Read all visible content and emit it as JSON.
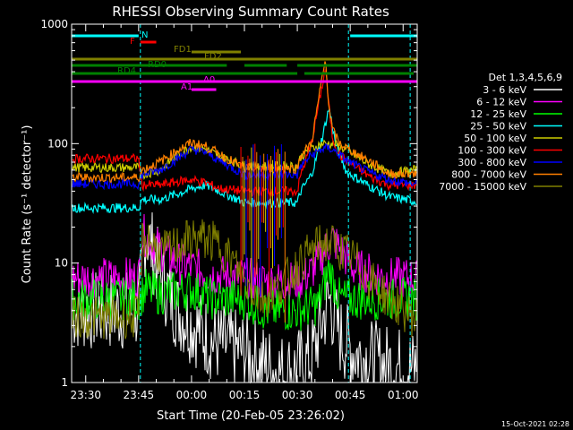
{
  "chart_data": {
    "type": "line",
    "title": "RHESSI Observing Summary Count Rates",
    "xlabel": "Start Time (20-Feb-05 23:26:02)",
    "ylabel": "Count Rate (s⁻¹ detector⁻¹)",
    "yscale": "log",
    "ylim": [
      1,
      1000
    ],
    "xlim_minutes_after_23_26_02": [
      0,
      98
    ],
    "x_ticks": [
      "23:30",
      "23:45",
      "00:00",
      "00:15",
      "00:30",
      "00:45",
      "01:00"
    ],
    "x_tick_minutes": [
      4,
      19,
      34,
      49,
      64,
      79,
      94
    ],
    "y_ticks": [
      "1",
      "10",
      "100",
      "1000"
    ],
    "y_tick_values": [
      1,
      10,
      100,
      1000
    ],
    "legend_title": "Det 1,3,4,5,6,9",
    "legend_position": "right",
    "timestamp": "15-Oct-2021 02:28",
    "series": [
      {
        "name": "3 - 6 keV",
        "color": "#ffffff",
        "x": [
          0,
          19,
          21,
          25,
          30,
          40,
          49,
          55,
          60,
          64,
          68,
          70,
          73,
          76,
          80,
          86,
          90,
          97
        ],
        "y": [
          4,
          4,
          19,
          8,
          4,
          2.2,
          1.8,
          1.4,
          1.2,
          1.3,
          1.6,
          2.5,
          5,
          2.5,
          1.8,
          1.5,
          1.4,
          1.3
        ]
      },
      {
        "name": "6 - 12 keV",
        "color": "#ff00ff",
        "x": [
          0,
          19,
          20,
          21,
          25,
          30,
          35,
          40,
          49,
          55,
          64,
          68,
          72,
          74,
          80,
          86,
          90,
          97
        ],
        "y": [
          7.5,
          7.5,
          17,
          17,
          13,
          10,
          9,
          8,
          7.5,
          7,
          7,
          8.5,
          13,
          16,
          9,
          8,
          7.5,
          7.5
        ]
      },
      {
        "name": "12 - 25 keV",
        "color": "#00ff00",
        "x": [
          0,
          19,
          21,
          25,
          34,
          40,
          49,
          55,
          64,
          70,
          73,
          76,
          80,
          90,
          97
        ],
        "y": [
          5,
          5,
          6,
          5.5,
          6,
          5,
          5,
          4,
          4,
          4.5,
          9,
          5,
          5,
          5,
          5
        ]
      },
      {
        "name": "25 - 50 keV",
        "color": "#00ffff",
        "x": [
          0,
          19,
          20,
          25,
          30,
          34,
          38,
          42,
          49,
          64,
          65,
          68,
          71,
          73,
          75,
          78,
          84,
          90,
          97
        ],
        "y": [
          29,
          29,
          34,
          34,
          38,
          42,
          45,
          40,
          32,
          32,
          40,
          55,
          110,
          200,
          95,
          58,
          45,
          36,
          33
        ]
      },
      {
        "name": "50 - 100 keV",
        "color": "#cccc00",
        "x": [
          0,
          19,
          20,
          25,
          30,
          34,
          38,
          42,
          49,
          64,
          65,
          68,
          71,
          73,
          75,
          78,
          84,
          90,
          97
        ],
        "y": [
          63,
          63,
          55,
          60,
          80,
          95,
          90,
          78,
          65,
          65,
          78,
          90,
          100,
          100,
          98,
          88,
          68,
          56,
          60
        ]
      },
      {
        "name": "100 - 300 keV",
        "color": "#ff0000",
        "x": [
          0,
          19,
          20,
          25,
          30,
          34,
          38,
          42,
          49,
          64,
          65,
          68,
          71,
          72,
          73,
          74,
          76,
          80,
          85,
          90,
          97
        ],
        "y": [
          75,
          75,
          45,
          45,
          48,
          50,
          47,
          42,
          40,
          40,
          55,
          100,
          300,
          430,
          200,
          110,
          80,
          65,
          52,
          45,
          45
        ]
      },
      {
        "name": "300 - 800 keV",
        "color": "#0000ff",
        "x": [
          0,
          19,
          20,
          25,
          30,
          34,
          38,
          42,
          49,
          64,
          65,
          68,
          71,
          73,
          75,
          78,
          84,
          90,
          97
        ],
        "y": [
          46,
          46,
          55,
          60,
          75,
          90,
          85,
          72,
          55,
          55,
          65,
          80,
          90,
          92,
          85,
          72,
          58,
          50,
          46
        ]
      },
      {
        "name": "800 - 7000 keV",
        "color": "#ff8000",
        "x": [
          0,
          19,
          20,
          25,
          30,
          34,
          38,
          42,
          49,
          64,
          65,
          68,
          71,
          72,
          73,
          74,
          76,
          80,
          85,
          90,
          97
        ],
        "y": [
          52,
          52,
          60,
          70,
          88,
          102,
          95,
          82,
          62,
          62,
          80,
          100,
          350,
          500,
          200,
          130,
          100,
          85,
          70,
          56,
          56
        ]
      },
      {
        "name": "7000 - 15000 keV",
        "color": "#808000",
        "x": [
          0,
          19,
          20,
          22,
          25,
          30,
          34,
          38,
          42,
          46,
          49,
          54,
          58,
          62,
          66,
          70,
          73,
          76,
          80,
          85,
          90,
          97
        ],
        "y": [
          3.5,
          3.5,
          15,
          16,
          12,
          14,
          16,
          16,
          14,
          10,
          7,
          5,
          6,
          8,
          11,
          14,
          15,
          13,
          11,
          7,
          5,
          3.5
        ]
      }
    ],
    "annotations": [
      {
        "label": "N",
        "color": "#00ffff"
      },
      {
        "label": "F",
        "color": "#ff0000"
      },
      {
        "label": "FD1",
        "color": "#808000"
      },
      {
        "label": "FD2",
        "color": "#808000"
      },
      {
        "label": "RD0",
        "color": "#008000"
      },
      {
        "label": "RD4",
        "color": "#008000"
      },
      {
        "label": "A0",
        "color": "#ff00ff"
      },
      {
        "label": "A1",
        "color": "#ff00ff"
      }
    ]
  }
}
